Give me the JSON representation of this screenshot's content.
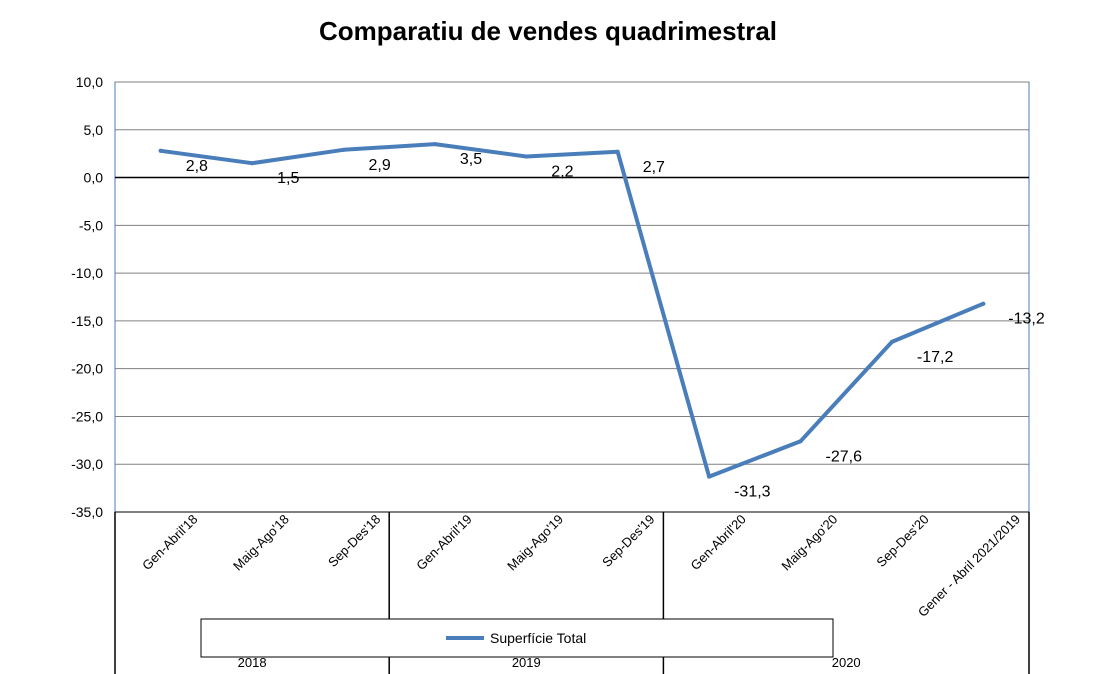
{
  "chart_data": {
    "type": "line",
    "title": "Comparatiu de vendes quadrimestral",
    "categories": [
      "Gen-Abril'18",
      "Maig-Ago'18",
      "Sep-Des'18",
      "Gen-Abril'19",
      "Maig-Ago'19",
      "Sep-Des'19",
      "Gen-Abril'20",
      "Maig-Ago'20",
      "Sep-Des'20",
      "Gener - Abril 2021/2019"
    ],
    "series": [
      {
        "name": "Superfície Total",
        "values": [
          2.8,
          1.5,
          2.9,
          3.5,
          2.2,
          2.7,
          -31.3,
          -27.6,
          -17.2,
          -13.2
        ],
        "labels": [
          "2,8",
          "1,5",
          "2,9",
          "3,5",
          "2,2",
          "2,7",
          "-31,3",
          "-27,6",
          "-17,2",
          "-13,2"
        ],
        "color": "#4a7ebb"
      }
    ],
    "groups": [
      {
        "label": "2018",
        "start": 0,
        "end": 2
      },
      {
        "label": "2019",
        "start": 3,
        "end": 5
      },
      {
        "label": "2020",
        "start": 6,
        "end": 9
      }
    ],
    "ylim": [
      -35,
      10
    ],
    "yticks": [
      10,
      5,
      0,
      -5,
      -10,
      -15,
      -20,
      -25,
      -30,
      -35
    ],
    "ytick_labels": [
      "10,0",
      "5,0",
      "0,0",
      "-5,0",
      "-10,0",
      "-15,0",
      "-20,0",
      "-25,0",
      "-30,0",
      "-35,0"
    ],
    "grid": true,
    "legend": "bottom"
  }
}
